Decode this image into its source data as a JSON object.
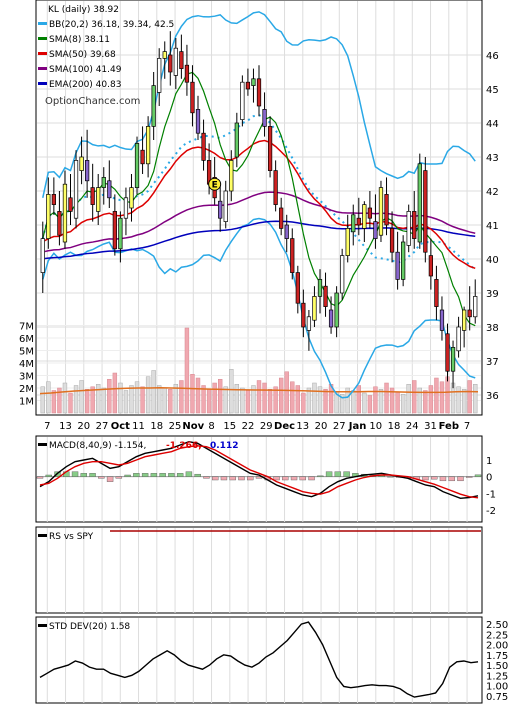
{
  "chart_data": [
    {
      "type": "candlestick",
      "title": "KL (daily) 38.92",
      "watermark": "OptionChance.com",
      "ylim": [
        35.5,
        47.5
      ],
      "y_ticks": [
        36,
        37,
        38,
        39,
        40,
        41,
        42,
        43,
        44,
        45,
        46
      ],
      "x_tick_labels": [
        "7",
        "13",
        "20",
        "27",
        "Oct",
        "11",
        "18",
        "25",
        "Nov",
        "8",
        "15",
        "22",
        "29",
        "Dec",
        "13",
        "20",
        "27",
        "Jan",
        "10",
        "18",
        "24",
        "31",
        "Feb",
        "7"
      ],
      "legend": [
        {
          "name": "BB(20,2) 36.18, 39.34, 42.5",
          "color": "#2aa8e6"
        },
        {
          "name": "SMA(8) 38.11",
          "color": "#008000"
        },
        {
          "name": "SMA(50) 39.68",
          "color": "#dd0000"
        },
        {
          "name": "SMA(100) 41.49",
          "color": "#800080"
        },
        {
          "name": "EMA(200) 40.83",
          "color": "#0000bb"
        }
      ],
      "earnings_marker": "E",
      "candles": [
        [
          39.6,
          41.1,
          39.0,
          40.6
        ],
        [
          40.6,
          42.4,
          40.3,
          41.9
        ],
        [
          41.9,
          42.4,
          41.3,
          41.6
        ],
        [
          41.4,
          42.0,
          40.4,
          40.7
        ],
        [
          40.5,
          42.6,
          40.3,
          42.2
        ],
        [
          41.8,
          42.5,
          41.0,
          41.4
        ],
        [
          41.2,
          43.2,
          40.9,
          42.9
        ],
        [
          42.6,
          43.6,
          42.2,
          43.0
        ],
        [
          42.9,
          43.8,
          41.8,
          42.3
        ],
        [
          42.1,
          42.8,
          41.1,
          41.6
        ],
        [
          41.4,
          42.5,
          41.0,
          42.1
        ],
        [
          42.1,
          42.7,
          41.6,
          42.4
        ],
        [
          42.3,
          42.9,
          41.5,
          41.8
        ],
        [
          41.4,
          41.9,
          40.1,
          40.3
        ],
        [
          40.3,
          41.4,
          39.9,
          41.2
        ],
        [
          41.2,
          42.1,
          40.7,
          41.8
        ],
        [
          41.5,
          42.5,
          41.1,
          42.1
        ],
        [
          42.1,
          43.6,
          41.9,
          43.4
        ],
        [
          43.2,
          43.9,
          42.5,
          42.8
        ],
        [
          42.8,
          44.2,
          42.4,
          43.9
        ],
        [
          43.9,
          45.5,
          43.5,
          45.1
        ],
        [
          44.9,
          46.2,
          44.5,
          45.9
        ],
        [
          45.9,
          46.4,
          45.3,
          46.1
        ],
        [
          46.0,
          46.7,
          45.1,
          45.5
        ],
        [
          45.4,
          46.5,
          45.0,
          46.2
        ],
        [
          46.1,
          46.6,
          45.3,
          45.6
        ],
        [
          45.7,
          46.3,
          44.8,
          45.2
        ],
        [
          45.2,
          45.7,
          43.9,
          44.3
        ],
        [
          44.4,
          44.8,
          43.5,
          43.7
        ],
        [
          43.7,
          44.1,
          42.6,
          42.9
        ],
        [
          42.9,
          43.4,
          41.9,
          42.2
        ],
        [
          42.4,
          43.0,
          41.6,
          41.8
        ],
        [
          41.7,
          42.2,
          40.8,
          41.2
        ],
        [
          41.1,
          42.3,
          40.9,
          42.0
        ],
        [
          42.0,
          43.2,
          41.7,
          42.9
        ],
        [
          43.0,
          44.3,
          42.7,
          44.0
        ],
        [
          44.1,
          45.4,
          43.9,
          45.2
        ],
        [
          45.2,
          45.6,
          44.8,
          45.0
        ],
        [
          45.1,
          45.6,
          44.6,
          45.3
        ],
        [
          45.3,
          45.7,
          44.2,
          44.5
        ],
        [
          44.4,
          44.9,
          43.6,
          43.9
        ],
        [
          43.9,
          44.2,
          42.4,
          42.6
        ],
        [
          42.6,
          42.9,
          41.4,
          41.6
        ],
        [
          41.5,
          41.8,
          40.7,
          40.9
        ],
        [
          41.0,
          41.3,
          40.2,
          40.6
        ],
        [
          40.6,
          40.9,
          39.4,
          39.6
        ],
        [
          39.6,
          39.8,
          38.4,
          38.7
        ],
        [
          38.7,
          39.1,
          37.7,
          38.0
        ],
        [
          37.9,
          38.5,
          37.3,
          38.3
        ],
        [
          38.2,
          39.2,
          38.0,
          38.9
        ],
        [
          38.9,
          39.7,
          38.4,
          39.4
        ],
        [
          39.2,
          39.6,
          38.3,
          38.6
        ],
        [
          38.5,
          38.9,
          37.8,
          38.0
        ],
        [
          38.0,
          39.2,
          37.7,
          39.0
        ],
        [
          39.0,
          40.3,
          38.8,
          40.1
        ],
        [
          40.1,
          41.3,
          39.9,
          40.9
        ],
        [
          40.8,
          41.6,
          40.4,
          41.3
        ],
        [
          41.2,
          41.8,
          40.7,
          41.0
        ],
        [
          40.9,
          41.7,
          40.5,
          41.6
        ],
        [
          41.5,
          42.0,
          40.9,
          41.2
        ],
        [
          41.1,
          41.9,
          40.3,
          40.6
        ],
        [
          40.7,
          42.3,
          40.5,
          42.1
        ],
        [
          41.9,
          42.4,
          40.7,
          41.0
        ],
        [
          40.9,
          41.4,
          39.9,
          40.2
        ],
        [
          40.2,
          40.8,
          39.1,
          39.4
        ],
        [
          39.4,
          40.7,
          39.2,
          40.5
        ],
        [
          40.4,
          41.6,
          40.2,
          41.4
        ],
        [
          41.4,
          42.0,
          40.3,
          40.6
        ],
        [
          40.5,
          43.1,
          40.3,
          42.8
        ],
        [
          42.6,
          43.0,
          39.9,
          40.2
        ],
        [
          40.1,
          40.6,
          39.1,
          39.5
        ],
        [
          39.4,
          39.8,
          38.2,
          38.6
        ],
        [
          38.5,
          38.9,
          37.6,
          37.9
        ],
        [
          37.8,
          38.1,
          36.4,
          36.7
        ],
        [
          36.7,
          37.6,
          36.2,
          37.4
        ],
        [
          37.3,
          38.3,
          37.1,
          38.0
        ],
        [
          37.9,
          38.6,
          37.4,
          38.5
        ],
        [
          38.5,
          39.2,
          37.9,
          38.3
        ],
        [
          38.3,
          39.4,
          38.1,
          38.9
        ]
      ]
    },
    {
      "type": "bar",
      "title": "",
      "ylim": [
        0,
        7.6
      ],
      "y_ticks_labels": [
        "1M",
        "2M",
        "3M",
        "4M",
        "5M",
        "6M",
        "7M"
      ],
      "unit": "M shares",
      "volume_millions": [
        2.1,
        2.5,
        1.8,
        2.0,
        2.4,
        1.6,
        2.2,
        2.6,
        1.9,
        2.1,
        2.3,
        2.0,
        2.7,
        3.2,
        2.4,
        1.8,
        2.2,
        2.5,
        2.1,
        2.9,
        3.4,
        2.2,
        2.0,
        1.9,
        2.3,
        2.6,
        6.8,
        3.1,
        2.8,
        2.2,
        1.9,
        2.4,
        2.7,
        2.1,
        3.5,
        2.3,
        2.0,
        1.8,
        2.2,
        2.6,
        2.4,
        1.9,
        2.1,
        2.8,
        3.3,
        2.5,
        2.2,
        1.6,
        2.0,
        2.4,
        2.1,
        1.9,
        2.3,
        1.7,
        1.5,
        2.0,
        1.8,
        2.2,
        1.6,
        1.4,
        2.1,
        1.9,
        2.4,
        2.0,
        1.7,
        1.5,
        2.3,
        2.6,
        2.0,
        1.8,
        2.2,
        2.8,
        2.5,
        2.9,
        2.4,
        2.1,
        1.9,
        2.6,
        2.3
      ],
      "avg_volume_millions": [
        1.55,
        1.6,
        1.68,
        1.75,
        1.8,
        1.85,
        1.9,
        1.95,
        1.98,
        2.0,
        2.0,
        2.02,
        2.0,
        1.98,
        1.95,
        1.92,
        1.9,
        1.88,
        1.86,
        1.85,
        1.84,
        1.83,
        1.82,
        1.8,
        1.78,
        1.75,
        1.72,
        1.7,
        1.7,
        1.7,
        1.72,
        1.72,
        1.7,
        1.68,
        1.66,
        1.65,
        1.65,
        1.66,
        1.7,
        1.72,
        1.7
      ]
    },
    {
      "type": "line",
      "title": "MACD(8,40,9) -1.154,",
      "values_printed": [
        "-1.266,",
        "0.112"
      ],
      "value_colors": [
        "#dd0000",
        "#0000cc"
      ],
      "ylim": [
        -2.6,
        2.2
      ],
      "y_ticks": [
        1,
        0,
        -1,
        -2
      ],
      "series": [
        {
          "color": "#000000",
          "values": [
            -0.6,
            -0.3,
            0.2,
            0.6,
            0.9,
            1.0,
            1.1,
            0.8,
            0.5,
            0.6,
            0.9,
            1.2,
            1.4,
            1.5,
            1.6,
            1.7,
            1.9,
            2.1,
            2.0,
            1.7,
            1.4,
            1.1,
            0.8,
            0.5,
            0.2,
            0.1,
            -0.2,
            -0.5,
            -0.7,
            -0.9,
            -1.1,
            -1.2,
            -1.0,
            -0.6,
            -0.3,
            -0.1,
            0.0,
            0.1,
            0.15,
            0.2,
            0.1,
            0.0,
            -0.1,
            -0.3,
            -0.5,
            -0.6,
            -0.9,
            -1.1,
            -1.3,
            -1.25,
            -1.15
          ]
        },
        {
          "color": "#dd0000",
          "values": [
            -0.5,
            -0.4,
            -0.1,
            0.3,
            0.6,
            0.8,
            0.9,
            0.9,
            0.8,
            0.7,
            0.8,
            1.0,
            1.2,
            1.3,
            1.4,
            1.5,
            1.7,
            1.8,
            1.85,
            1.8,
            1.6,
            1.3,
            1.0,
            0.7,
            0.4,
            0.2,
            0.0,
            -0.3,
            -0.5,
            -0.7,
            -0.9,
            -1.0,
            -1.05,
            -0.9,
            -0.6,
            -0.4,
            -0.2,
            -0.05,
            0.05,
            0.1,
            0.1,
            0.05,
            0.0,
            -0.15,
            -0.3,
            -0.45,
            -0.65,
            -0.85,
            -1.05,
            -1.2,
            -1.27
          ]
        },
        {
          "color": "#4a9f4a",
          "type": "histogram",
          "values": [
            -0.1,
            0.1,
            0.3,
            0.3,
            0.3,
            0.2,
            0.2,
            -0.1,
            -0.3,
            -0.1,
            0.1,
            0.2,
            0.2,
            0.2,
            0.2,
            0.2,
            0.2,
            0.3,
            0.15,
            -0.1,
            -0.2,
            -0.2,
            -0.2,
            -0.2,
            -0.2,
            -0.1,
            -0.2,
            -0.2,
            -0.2,
            -0.2,
            -0.2,
            -0.2,
            0.05,
            0.3,
            0.3,
            0.3,
            0.2,
            0.15,
            0.1,
            0.1,
            0.0,
            -0.05,
            -0.1,
            -0.15,
            -0.2,
            -0.15,
            -0.25,
            -0.25,
            -0.25,
            -0.05,
            0.11
          ]
        }
      ]
    },
    {
      "type": "line",
      "title": "RS vs SPY",
      "series": [
        {
          "color": "#aa0000",
          "values": [
            0.5,
            0.5
          ]
        }
      ]
    },
    {
      "type": "line",
      "title": "STD DEV(20) 1.58",
      "ylim": [
        0.6,
        2.6
      ],
      "y_ticks": [
        2.5,
        2.25,
        2.0,
        1.75,
        1.5,
        1.25,
        1.0,
        0.75
      ],
      "series": [
        {
          "color": "#000000",
          "values": [
            1.2,
            1.3,
            1.4,
            1.45,
            1.5,
            1.6,
            1.55,
            1.45,
            1.4,
            1.4,
            1.3,
            1.25,
            1.2,
            1.25,
            1.35,
            1.5,
            1.65,
            1.75,
            1.85,
            1.75,
            1.6,
            1.5,
            1.45,
            1.4,
            1.5,
            1.65,
            1.75,
            1.72,
            1.6,
            1.5,
            1.45,
            1.55,
            1.7,
            1.8,
            1.95,
            2.1,
            2.3,
            2.5,
            2.55,
            2.3,
            2.0,
            1.6,
            1.2,
            0.98,
            0.95,
            0.97,
            1.0,
            1.02,
            1.0,
            1.0,
            0.98,
            0.92,
            0.8,
            0.72,
            0.75,
            0.78,
            0.82,
            1.05,
            1.45,
            1.58,
            1.6,
            1.56,
            1.58
          ]
        }
      ]
    }
  ]
}
